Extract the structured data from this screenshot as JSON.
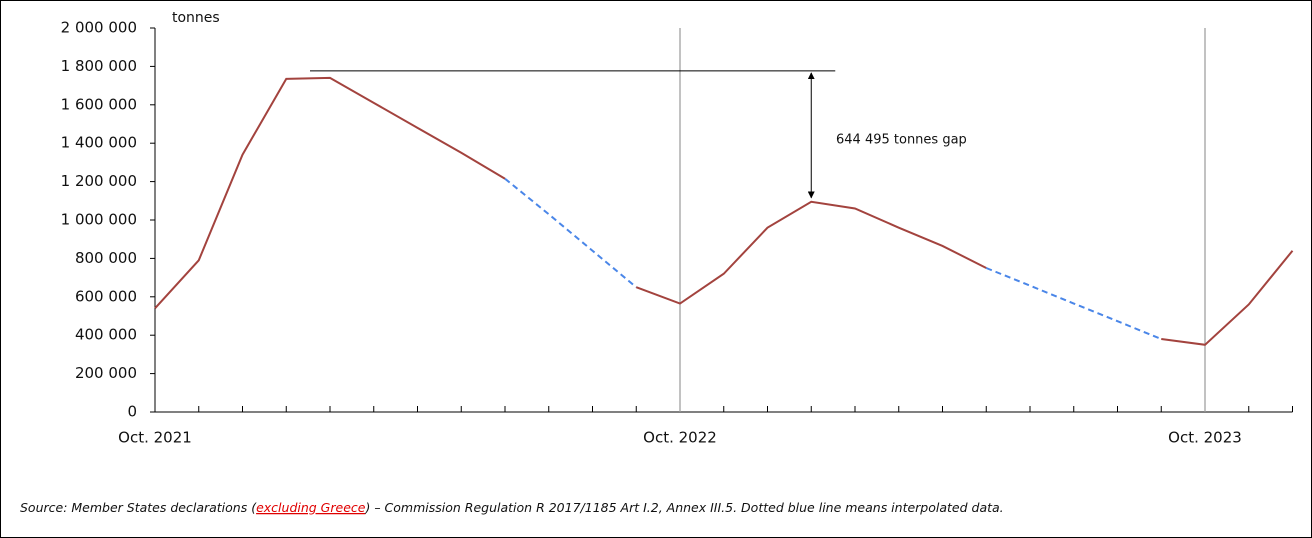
{
  "chart_data": {
    "type": "line",
    "y_unit_label": "tonnes",
    "annotation": "644 495 tonnes gap",
    "categories": [
      "Oct. 2021",
      null,
      null,
      null,
      null,
      null,
      null,
      null,
      null,
      null,
      null,
      null,
      "Oct. 2022",
      null,
      null,
      null,
      null,
      null,
      null,
      null,
      null,
      null,
      null,
      null,
      "Oct. 2023",
      null,
      null
    ],
    "values": [
      540000,
      790000,
      1340000,
      1735000,
      1740000,
      1610000,
      1480000,
      1350000,
      1215000,
      1030000,
      840000,
      650000,
      565000,
      720000,
      960000,
      1095000,
      1060000,
      960000,
      865000,
      750000,
      658000,
      565000,
      473000,
      380000,
      350000,
      560000,
      840000
    ],
    "interpolated": [
      false,
      false,
      false,
      false,
      false,
      false,
      false,
      false,
      false,
      true,
      true,
      false,
      false,
      false,
      false,
      false,
      false,
      false,
      false,
      false,
      true,
      true,
      true,
      false,
      false,
      false,
      false
    ],
    "color": "#a3433e",
    "interpolated_color": "#4a86e8",
    "ylim": [
      0,
      2000000
    ],
    "yticks": [
      0,
      {
        "value": 200000,
        "label": "200 000"
      },
      {
        "value": 400000,
        "label": "400 000"
      },
      {
        "value": 600000,
        "label": "600 000"
      },
      {
        "value": 800000,
        "label": "800 000"
      },
      {
        "value": 1000000,
        "label": "1 000 000"
      },
      {
        "value": 1200000,
        "label": "1 200 000"
      },
      {
        "value": 1400000,
        "label": "1 400 000"
      },
      {
        "value": 1600000,
        "label": "1 600 000"
      },
      {
        "value": 1800000,
        "label": "1 800 000"
      },
      {
        "value": 2000000,
        "label": "2 000 000"
      }
    ],
    "source": {
      "before": "Source: Member States declarations (",
      "link": "excluding Greece",
      "after": ") – Commission Regulation R 2017/1185 Art I.2, Annex III.5. Dotted blue line means interpolated data."
    }
  }
}
